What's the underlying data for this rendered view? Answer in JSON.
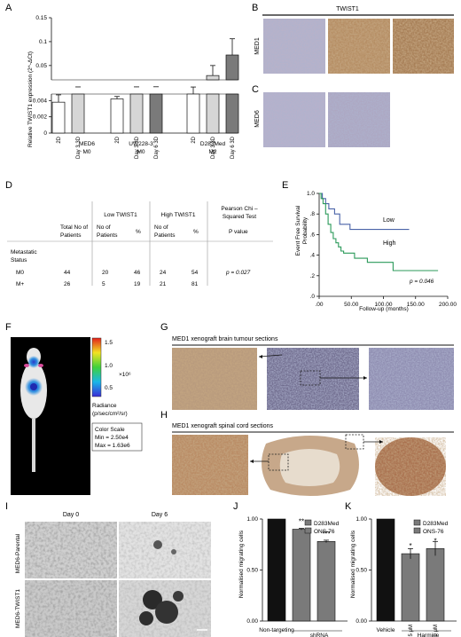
{
  "panels": {
    "A": "A",
    "B": "B",
    "C": "C",
    "D": "D",
    "E": "E",
    "F": "F",
    "G": "G",
    "H": "H",
    "I": "I",
    "J": "J",
    "K": "K"
  },
  "colors": {
    "white": "#ffffff",
    "light": "#d6d6d6",
    "dark": "#7a7a7a",
    "black": "#111111",
    "blue": "#4a63a8",
    "green": "#2b9a5a"
  },
  "panel_a": {
    "chart_data": {
      "type": "bar",
      "ylabel": "Relative TWIST1 expression (2^-ΔCt)",
      "categories": [
        "2D",
        "Day 3 3D",
        "2D",
        "Day 3 3D",
        "Day 6 3D",
        "2D",
        "Day 3 3D",
        "Day 6 3D"
      ],
      "values": [
        0.0038,
        0.0049,
        0.0042,
        0.0049,
        0.0051,
        0.0048,
        0.029,
        0.072
      ],
      "errors": [
        0.0009,
        0.0003,
        0.0003,
        0.0004,
        0.0004,
        0.0002,
        0.021,
        0.034
      ],
      "fills": [
        "white",
        "light",
        "white",
        "light",
        "dark",
        "white",
        "light",
        "dark"
      ],
      "y_ticks_lower": [
        0,
        0.002,
        0.004
      ],
      "y_ticks_upper": [
        0.05,
        0.1,
        0.15
      ],
      "groups": [
        {
          "line1": "MED6",
          "line2": "M0"
        },
        {
          "line1": "UW228-3",
          "line2": "M0"
        },
        {
          "line1": "D283Med",
          "line2": "M2"
        }
      ]
    }
  },
  "panel_b": {
    "header": "TWIST1",
    "row_label": "MED1"
  },
  "panel_c": {
    "row_label": "MED6"
  },
  "panel_d": {
    "col_low": "Low TWIST1",
    "col_high": "High TWIST1",
    "col_test": "Pearson Chi – Squared Test",
    "sub_total": "Total No of Patients",
    "sub_no": "No of Patients",
    "sub_pct": "%",
    "sub_p": "P value",
    "row_header": "Metastatic Status",
    "rows": [
      {
        "label": "M0",
        "total": "44",
        "low_n": "20",
        "low_pct": "46",
        "high_n": "24",
        "high_pct": "54",
        "p": "p = 0.027"
      },
      {
        "label": "M+",
        "total": "26",
        "low_n": "5",
        "low_pct": "19",
        "high_n": "21",
        "high_pct": "81",
        "p": ""
      }
    ]
  },
  "panel_e": {
    "chart_data": {
      "type": "line",
      "xlabel": "Follow-up (months)",
      "ylabel": "Event Free Survival Probability",
      "xlim": [
        0,
        200
      ],
      "ylim": [
        0,
        1
      ],
      "x_ticks": [
        ".00",
        "50.00",
        "100.00",
        "150.00",
        "200.00"
      ],
      "y_ticks": [
        ".0",
        ".2",
        ".4",
        ".6",
        ".8",
        "1.0"
      ],
      "annotation": "p = 0.046",
      "series": [
        {
          "name": "Low",
          "x": [
            0,
            5,
            5,
            10,
            10,
            15,
            15,
            24,
            24,
            32,
            32,
            48,
            48,
            140
          ],
          "y": [
            1,
            1,
            0.95,
            0.95,
            0.9,
            0.9,
            0.85,
            0.85,
            0.8,
            0.8,
            0.7,
            0.7,
            0.65,
            0.65
          ]
        },
        {
          "name": "High",
          "x": [
            0,
            3,
            3,
            6,
            6,
            10,
            10,
            14,
            14,
            18,
            18,
            22,
            22,
            26,
            26,
            30,
            30,
            34,
            34,
            38,
            38,
            55,
            55,
            75,
            75,
            115,
            115,
            185
          ],
          "y": [
            1,
            1,
            0.95,
            0.95,
            0.9,
            0.9,
            0.8,
            0.8,
            0.7,
            0.7,
            0.62,
            0.62,
            0.56,
            0.56,
            0.52,
            0.52,
            0.48,
            0.48,
            0.44,
            0.44,
            0.42,
            0.42,
            0.37,
            0.37,
            0.33,
            0.33,
            0.25,
            0.25
          ]
        }
      ]
    }
  },
  "panel_f": {
    "ticks": [
      "1.5",
      "1.0",
      "0.5"
    ],
    "multiplier": "×10⁶",
    "radiance": "Radiance",
    "unit": "(p/sec/cm²/sr)",
    "color_scale": "Color Scale",
    "min": "Min = 2.50e4",
    "max": "Max = 1.63e6"
  },
  "panel_g": {
    "title": "MED1 xenograft brain tumour sections"
  },
  "panel_h": {
    "title": "MED1 xenograft spinal cord sections"
  },
  "panel_i": {
    "day0": "Day 0",
    "day6": "Day 6",
    "row1": "MED6-Parental",
    "row2": "MED6-TWIST1"
  },
  "panel_j": {
    "chart_data": {
      "type": "bar",
      "ylabel": "Normalised migrating cells",
      "ylim": [
        0,
        1
      ],
      "y_ticks": [
        "0.00",
        "0.50",
        "1.00"
      ],
      "legend": [
        "D283Med",
        "ONS-76"
      ],
      "bars": [
        {
          "label": "Non-targeting",
          "value": 1.0,
          "error": 0,
          "fill": "black",
          "star": ""
        },
        {
          "label": "",
          "value": 0.9,
          "error": 0.008,
          "fill": "dark",
          "star": "**"
        },
        {
          "label": "",
          "value": 0.78,
          "error": 0.012,
          "fill": "dark",
          "star": "***"
        }
      ],
      "group_labels": [
        "Non-targeting",
        "shRNA"
      ]
    }
  },
  "panel_k": {
    "chart_data": {
      "type": "bar",
      "ylabel": "Normalised migrating cells",
      "ylim": [
        0,
        1
      ],
      "y_ticks": [
        "0.00",
        "0.50",
        "1.00"
      ],
      "legend": [
        "D283Med",
        "ONS-76"
      ],
      "bars": [
        {
          "label": "Vehicle",
          "value": 1.0,
          "error": 0,
          "fill": "black",
          "star": ""
        },
        {
          "label": "5 μM",
          "value": 0.66,
          "error": 0.05,
          "fill": "dark",
          "star": "*"
        },
        {
          "label": "20 μM",
          "value": 0.71,
          "error": 0.07,
          "fill": "dark",
          "star": "*"
        }
      ],
      "group_labels": [
        "Vehicle",
        "Harmine"
      ]
    }
  }
}
